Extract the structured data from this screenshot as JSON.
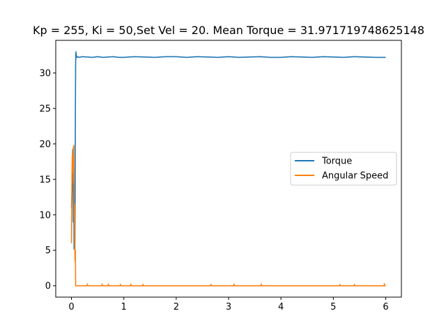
{
  "chart_data": {
    "type": "line",
    "title": "Kp = 255, Ki = 50,Set Vel = 20. Mean Torque = 31.971719748625148",
    "xlabel": "",
    "ylabel": "",
    "xlim": [
      -0.3,
      6.3
    ],
    "ylim": [
      -1.6,
      34.6
    ],
    "xticks": [
      0,
      1,
      2,
      3,
      4,
      5,
      6
    ],
    "yticks": [
      0,
      5,
      10,
      15,
      20,
      25,
      30
    ],
    "grid": false,
    "legend_position": "center-right",
    "series": [
      {
        "name": "Torque",
        "color": "#1f77b4",
        "x": [
          0.0,
          0.01,
          0.02,
          0.025,
          0.03,
          0.035,
          0.04,
          0.045,
          0.05,
          0.055,
          0.06,
          0.065,
          0.07,
          0.075,
          0.08,
          0.085,
          0.09,
          0.1,
          0.12,
          0.15,
          0.2,
          0.3,
          0.4,
          0.5,
          0.6,
          0.7,
          0.8,
          0.9,
          1.0,
          1.2,
          1.4,
          1.6,
          1.8,
          2.0,
          2.2,
          2.4,
          2.6,
          2.8,
          3.0,
          3.2,
          3.4,
          3.6,
          3.8,
          4.0,
          4.2,
          4.4,
          4.6,
          4.8,
          5.0,
          5.2,
          5.4,
          5.6,
          5.8,
          6.0
        ],
        "y": [
          11.0,
          13.5,
          18.5,
          19.2,
          15.0,
          9.0,
          11.5,
          14.8,
          5.2,
          8.0,
          11.0,
          5.0,
          12.0,
          25.0,
          31.5,
          33.0,
          32.6,
          32.2,
          32.3,
          32.2,
          32.3,
          32.25,
          32.2,
          32.3,
          32.2,
          32.25,
          32.3,
          32.2,
          32.2,
          32.3,
          32.25,
          32.2,
          32.3,
          32.3,
          32.2,
          32.3,
          32.25,
          32.2,
          32.3,
          32.2,
          32.25,
          32.3,
          32.2,
          32.2,
          32.3,
          32.25,
          32.2,
          32.3,
          32.25,
          32.2,
          32.3,
          32.25,
          32.2,
          32.2
        ]
      },
      {
        "name": "Angular Speed",
        "color": "#ff7f0e",
        "x": [
          0.0,
          0.005,
          0.01,
          0.015,
          0.02,
          0.025,
          0.03,
          0.035,
          0.04,
          0.045,
          0.05,
          0.055,
          0.06,
          0.065,
          0.07,
          0.075,
          0.08,
          0.085,
          0.09,
          0.095,
          0.1,
          0.2,
          0.3,
          0.305,
          0.31,
          0.4,
          0.58,
          0.585,
          0.59,
          0.7,
          0.705,
          0.71,
          0.93,
          0.935,
          0.94,
          1.13,
          1.135,
          1.14,
          1.36,
          1.365,
          1.37,
          2.0,
          2.66,
          2.665,
          2.67,
          3.1,
          3.105,
          3.11,
          3.62,
          3.625,
          3.63,
          4.5,
          5.12,
          5.125,
          5.13,
          5.4,
          5.405,
          5.41,
          5.97,
          5.975,
          5.98,
          6.0
        ],
        "y": [
          6.0,
          10.5,
          15.5,
          18.3,
          16.0,
          18.6,
          17.0,
          19.5,
          14.5,
          19.8,
          10.0,
          9.0,
          11.5,
          5.0,
          3.5,
          5.0,
          0.0,
          0.0,
          0.0,
          0.0,
          0.0,
          0.0,
          0.0,
          0.25,
          0.0,
          0.0,
          0.0,
          0.25,
          0.0,
          0.0,
          0.25,
          0.0,
          0.0,
          0.2,
          0.0,
          0.0,
          0.25,
          0.0,
          0.0,
          0.2,
          0.0,
          0.0,
          0.0,
          0.2,
          0.0,
          0.0,
          0.25,
          0.0,
          0.0,
          0.25,
          0.0,
          0.0,
          0.0,
          0.2,
          0.0,
          0.0,
          0.2,
          0.0,
          0.0,
          0.3,
          0.0,
          0.0
        ]
      }
    ]
  }
}
